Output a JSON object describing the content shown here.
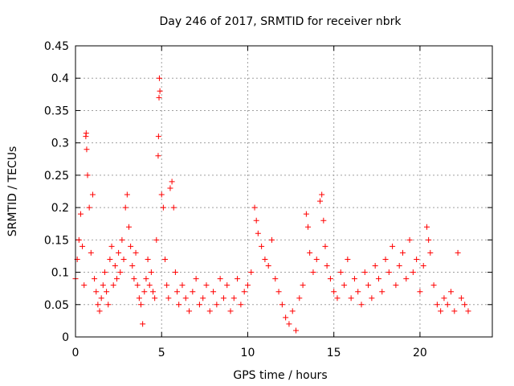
{
  "chart_data": {
    "type": "scatter",
    "title": "Day 246 of 2017, SRMTID for receiver nbrk",
    "xlabel": "GPS time / hours",
    "ylabel": "SRMTID / TECUs",
    "xlim": [
      0,
      24.2
    ],
    "ylim": [
      0,
      0.45
    ],
    "xticks": [
      0,
      5,
      10,
      15,
      20
    ],
    "xtick_labels": [
      "0",
      "5",
      "10",
      "15",
      "20"
    ],
    "yticks": [
      0,
      0.05,
      0.1,
      0.15,
      0.2,
      0.25,
      0.3,
      0.35,
      0.4,
      0.45
    ],
    "ytick_labels": [
      "0",
      "0.05",
      "0.1",
      "0.15",
      "0.2",
      "0.25",
      "0.3",
      "0.35",
      "0.4",
      "0.45"
    ],
    "grid": true,
    "marker": "plus",
    "color": "#ff0000",
    "series": [
      {
        "name": "SRMTID",
        "points": [
          [
            0.0,
            0.09
          ],
          [
            0.1,
            0.12
          ],
          [
            0.2,
            0.15
          ],
          [
            0.3,
            0.19
          ],
          [
            0.4,
            0.14
          ],
          [
            0.5,
            0.08
          ],
          [
            0.6,
            0.31
          ],
          [
            0.62,
            0.315
          ],
          [
            0.65,
            0.29
          ],
          [
            0.7,
            0.25
          ],
          [
            0.8,
            0.2
          ],
          [
            0.9,
            0.13
          ],
          [
            1.0,
            0.22
          ],
          [
            1.1,
            0.09
          ],
          [
            1.2,
            0.07
          ],
          [
            1.3,
            0.05
          ],
          [
            1.4,
            0.04
          ],
          [
            1.5,
            0.06
          ],
          [
            1.6,
            0.08
          ],
          [
            1.7,
            0.1
          ],
          [
            1.8,
            0.07
          ],
          [
            1.9,
            0.05
          ],
          [
            2.0,
            0.12
          ],
          [
            2.1,
            0.14
          ],
          [
            2.2,
            0.08
          ],
          [
            2.3,
            0.11
          ],
          [
            2.4,
            0.09
          ],
          [
            2.5,
            0.13
          ],
          [
            2.6,
            0.1
          ],
          [
            2.7,
            0.15
          ],
          [
            2.8,
            0.12
          ],
          [
            2.9,
            0.2
          ],
          [
            3.0,
            0.22
          ],
          [
            3.1,
            0.17
          ],
          [
            3.2,
            0.14
          ],
          [
            3.3,
            0.11
          ],
          [
            3.4,
            0.09
          ],
          [
            3.5,
            0.13
          ],
          [
            3.6,
            0.08
          ],
          [
            3.7,
            0.06
          ],
          [
            3.8,
            0.05
          ],
          [
            3.9,
            0.02
          ],
          [
            4.0,
            0.07
          ],
          [
            4.1,
            0.09
          ],
          [
            4.2,
            0.12
          ],
          [
            4.3,
            0.08
          ],
          [
            4.4,
            0.1
          ],
          [
            4.5,
            0.07
          ],
          [
            4.6,
            0.06
          ],
          [
            4.7,
            0.15
          ],
          [
            4.8,
            0.28
          ],
          [
            4.82,
            0.31
          ],
          [
            4.85,
            0.37
          ],
          [
            4.87,
            0.4
          ],
          [
            4.9,
            0.38
          ],
          [
            5.0,
            0.22
          ],
          [
            5.1,
            0.2
          ],
          [
            5.2,
            0.12
          ],
          [
            5.3,
            0.08
          ],
          [
            5.4,
            0.06
          ],
          [
            5.5,
            0.23
          ],
          [
            5.6,
            0.24
          ],
          [
            5.7,
            0.2
          ],
          [
            5.8,
            0.1
          ],
          [
            5.9,
            0.07
          ],
          [
            6.0,
            0.05
          ],
          [
            6.2,
            0.08
          ],
          [
            6.4,
            0.06
          ],
          [
            6.6,
            0.04
          ],
          [
            6.8,
            0.07
          ],
          [
            7.0,
            0.09
          ],
          [
            7.2,
            0.05
          ],
          [
            7.4,
            0.06
          ],
          [
            7.6,
            0.08
          ],
          [
            7.8,
            0.04
          ],
          [
            8.0,
            0.07
          ],
          [
            8.2,
            0.05
          ],
          [
            8.4,
            0.09
          ],
          [
            8.6,
            0.06
          ],
          [
            8.8,
            0.08
          ],
          [
            9.0,
            0.04
          ],
          [
            9.2,
            0.06
          ],
          [
            9.4,
            0.09
          ],
          [
            9.6,
            0.05
          ],
          [
            9.8,
            0.07
          ],
          [
            10.0,
            0.08
          ],
          [
            10.2,
            0.1
          ],
          [
            10.4,
            0.2
          ],
          [
            10.5,
            0.18
          ],
          [
            10.6,
            0.16
          ],
          [
            10.8,
            0.14
          ],
          [
            11.0,
            0.12
          ],
          [
            11.2,
            0.11
          ],
          [
            11.4,
            0.15
          ],
          [
            11.6,
            0.09
          ],
          [
            11.8,
            0.07
          ],
          [
            12.0,
            0.05
          ],
          [
            12.2,
            0.03
          ],
          [
            12.4,
            0.02
          ],
          [
            12.6,
            0.04
          ],
          [
            12.8,
            0.01
          ],
          [
            13.0,
            0.06
          ],
          [
            13.2,
            0.08
          ],
          [
            13.4,
            0.19
          ],
          [
            13.5,
            0.17
          ],
          [
            13.6,
            0.13
          ],
          [
            13.8,
            0.1
          ],
          [
            14.0,
            0.12
          ],
          [
            14.2,
            0.21
          ],
          [
            14.3,
            0.22
          ],
          [
            14.4,
            0.18
          ],
          [
            14.5,
            0.14
          ],
          [
            14.6,
            0.11
          ],
          [
            14.8,
            0.09
          ],
          [
            15.0,
            0.07
          ],
          [
            15.2,
            0.06
          ],
          [
            15.4,
            0.1
          ],
          [
            15.6,
            0.08
          ],
          [
            15.8,
            0.12
          ],
          [
            16.0,
            0.06
          ],
          [
            16.2,
            0.09
          ],
          [
            16.4,
            0.07
          ],
          [
            16.6,
            0.05
          ],
          [
            16.8,
            0.1
          ],
          [
            17.0,
            0.08
          ],
          [
            17.2,
            0.06
          ],
          [
            17.4,
            0.11
          ],
          [
            17.6,
            0.09
          ],
          [
            17.8,
            0.07
          ],
          [
            18.0,
            0.12
          ],
          [
            18.2,
            0.1
          ],
          [
            18.4,
            0.14
          ],
          [
            18.6,
            0.08
          ],
          [
            18.8,
            0.11
          ],
          [
            19.0,
            0.13
          ],
          [
            19.2,
            0.09
          ],
          [
            19.4,
            0.15
          ],
          [
            19.6,
            0.1
          ],
          [
            19.8,
            0.12
          ],
          [
            20.0,
            0.07
          ],
          [
            20.2,
            0.11
          ],
          [
            20.4,
            0.17
          ],
          [
            20.5,
            0.15
          ],
          [
            20.6,
            0.13
          ],
          [
            20.8,
            0.08
          ],
          [
            21.0,
            0.05
          ],
          [
            21.2,
            0.04
          ],
          [
            21.4,
            0.06
          ],
          [
            21.6,
            0.05
          ],
          [
            21.8,
            0.07
          ],
          [
            22.0,
            0.04
          ],
          [
            22.2,
            0.13
          ],
          [
            22.4,
            0.06
          ],
          [
            22.6,
            0.05
          ],
          [
            22.8,
            0.04
          ]
        ]
      }
    ]
  }
}
